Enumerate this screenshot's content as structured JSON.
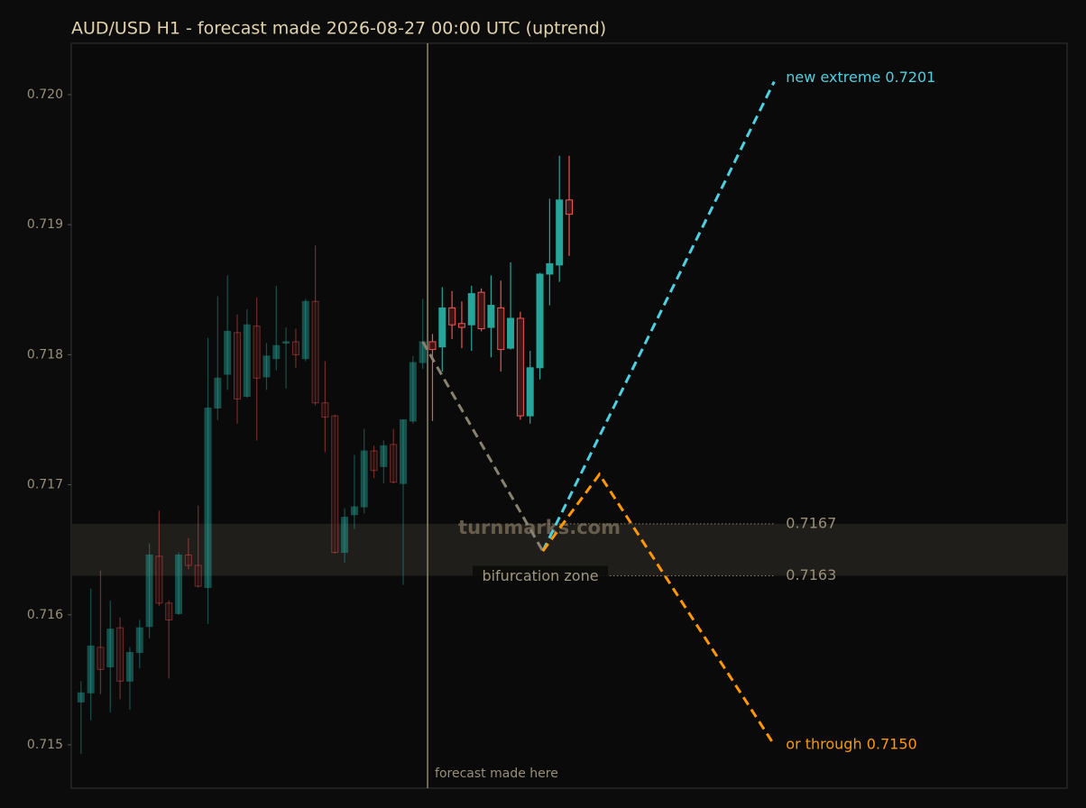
{
  "chart_data": {
    "type": "candlestick",
    "title": "AUD/USD H1 - forecast made 2026-08-27 00:00 UTC (uptrend)",
    "open": [
      0.71533,
      0.7154,
      0.71575,
      0.7156,
      0.7159,
      0.71549,
      0.71571,
      0.71591,
      0.71645,
      0.71609,
      0.71601,
      0.71646,
      0.71638,
      0.71621,
      0.71759,
      0.71785,
      0.71817,
      0.71768,
      0.71822,
      0.71783,
      0.71797,
      0.71809,
      0.7181,
      0.71797,
      0.71841,
      0.71763,
      0.71753,
      0.71648,
      0.71677,
      0.71683,
      0.71726,
      0.71714,
      0.71731,
      0.71701,
      0.71749,
      0.71794,
      0.7181,
      0.71806,
      0.71836,
      0.71824,
      0.71823,
      0.71848,
      0.71821,
      0.71836,
      0.71805,
      0.71828,
      0.71753,
      0.7179,
      0.71862,
      0.71869,
      0.71919
    ],
    "high": [
      0.71549,
      0.7162,
      0.71634,
      0.71611,
      0.71598,
      0.71575,
      0.71596,
      0.71655,
      0.7168,
      0.71611,
      0.71648,
      0.71659,
      0.71684,
      0.71813,
      0.71845,
      0.71861,
      0.71831,
      0.71835,
      0.71844,
      0.71809,
      0.71853,
      0.71821,
      0.7182,
      0.71843,
      0.71884,
      0.71795,
      0.71754,
      0.71682,
      0.71723,
      0.71743,
      0.7173,
      0.71734,
      0.71743,
      0.7175,
      0.71799,
      0.71843,
      0.71816,
      0.71852,
      0.71849,
      0.71841,
      0.71853,
      0.71851,
      0.71861,
      0.71857,
      0.71871,
      0.71833,
      0.71803,
      0.71863,
      0.7192,
      0.71953,
      0.71953
    ],
    "low": [
      0.71493,
      0.71519,
      0.71539,
      0.71525,
      0.71535,
      0.71527,
      0.71559,
      0.71582,
      0.71607,
      0.71551,
      0.716,
      0.71635,
      0.71621,
      0.71593,
      0.7175,
      0.71773,
      0.71747,
      0.71767,
      0.71734,
      0.71773,
      0.71788,
      0.71774,
      0.7179,
      0.71795,
      0.71761,
      0.71725,
      0.71647,
      0.7164,
      0.71666,
      0.71678,
      0.71705,
      0.71701,
      0.71701,
      0.71623,
      0.71747,
      0.71789,
      0.71749,
      0.71787,
      0.71812,
      0.71805,
      0.71803,
      0.71818,
      0.71798,
      0.71787,
      0.71804,
      0.7175,
      0.71747,
      0.71781,
      0.71838,
      0.71856,
      0.71876
    ],
    "close": [
      0.7154,
      0.71576,
      0.71558,
      0.71589,
      0.71549,
      0.71571,
      0.7159,
      0.71646,
      0.71609,
      0.71596,
      0.71646,
      0.71638,
      0.71622,
      0.71759,
      0.71782,
      0.71818,
      0.71766,
      0.71823,
      0.71782,
      0.71799,
      0.71807,
      0.7181,
      0.718,
      0.71841,
      0.71763,
      0.71752,
      0.71648,
      0.71675,
      0.71683,
      0.71726,
      0.71711,
      0.7173,
      0.71702,
      0.7175,
      0.71794,
      0.7181,
      0.71804,
      0.71836,
      0.71823,
      0.71821,
      0.71847,
      0.7182,
      0.71838,
      0.71804,
      0.71828,
      0.71753,
      0.7179,
      0.71862,
      0.7187,
      0.71919,
      0.71908
    ],
    "up_color": "#26a69a",
    "down_color": "#ef5350",
    "xlim": [
      -1,
      101
    ],
    "ylim": [
      0.714667,
      0.720395
    ],
    "yticks": [
      0.715,
      0.716,
      0.717,
      0.718,
      0.719,
      {
        "value": 0.72,
        "label": "0.720"
      }
    ],
    "forecast": {
      "x": 35.5,
      "label": "forecast made here"
    },
    "zone": {
      "low": 0.7163,
      "high": 0.7167,
      "label": "bifurcation zone",
      "color": "#201e1a"
    },
    "paths": [
      {
        "x": [
          35,
          47.3
        ],
        "y": [
          0.7181,
          0.71649
        ],
        "color": "#8a8170"
      },
      {
        "x": [
          47.3,
          71
        ],
        "y": [
          0.71649,
          0.7201
        ],
        "color": "#4dd0e1",
        "label": "new extreme 0.7201"
      },
      {
        "x": [
          47.3,
          53.1,
          71
        ],
        "y": [
          0.71649,
          0.71708,
          0.715
        ],
        "color": "#ff9800",
        "label": "or through 0.7150"
      }
    ],
    "watermark": "turnmarks.com"
  }
}
